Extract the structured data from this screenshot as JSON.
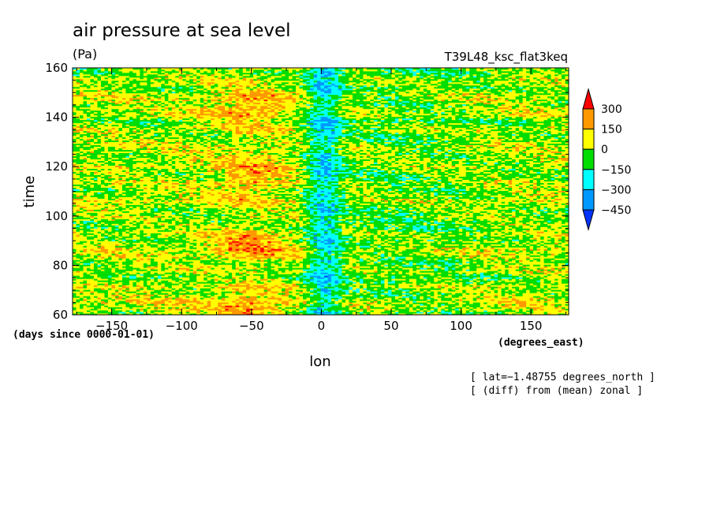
{
  "chart_data": {
    "type": "heatmap",
    "title": "air pressure at sea level",
    "units": "(Pa)",
    "run_label": "T39L48_ksc_flat3keq",
    "xlabel": "lon",
    "ylabel": "time",
    "x_units": "(degrees_east)",
    "y_units": "(days since 0000-01-01)",
    "xlim": [
      -178,
      177
    ],
    "ylim": [
      60,
      160
    ],
    "x_ticks": [
      -150,
      -100,
      -50,
      0,
      50,
      100,
      150
    ],
    "y_ticks": [
      60,
      80,
      100,
      120,
      140,
      160
    ],
    "x_tick_labels": [
      "−150",
      "−100",
      "−50",
      "0",
      "50",
      "100",
      "150"
    ],
    "y_tick_labels": [
      "60",
      "80",
      "100",
      "120",
      "140",
      "160"
    ],
    "colorbar": {
      "levels": [
        300,
        150,
        0,
        -150,
        -300,
        -450
      ],
      "labels": [
        "300",
        "150",
        "0",
        "−150",
        "−300",
        "−450"
      ],
      "colors": [
        "#ff0000",
        "#ff9900",
        "#ffff00",
        "#00dd00",
        "#00ffff",
        "#0099ff",
        "#0033ff"
      ]
    },
    "annotations": [
      "[ lat=−1.48755 degrees_north ]",
      "[ (diff) from (mean) zonal ]"
    ],
    "features": [
      {
        "lon_range": [
          -80,
          -20
        ],
        "sign": "positive",
        "max_approx": 300
      },
      {
        "lon_range": [
          -10,
          10
        ],
        "sign": "negative",
        "min_approx": -300
      }
    ]
  }
}
